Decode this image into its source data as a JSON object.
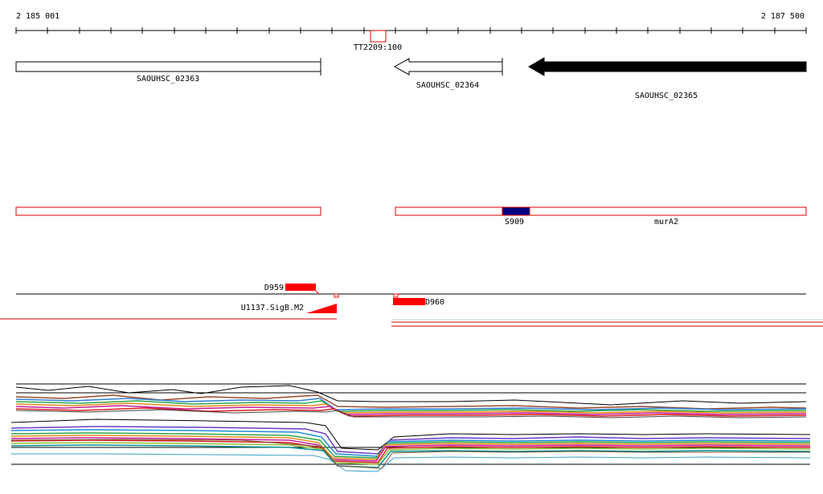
{
  "coordinates": {
    "start_label": "2 185 001",
    "end_label": "2 187 500"
  },
  "genes": [
    {
      "label": "SAOUHSC_02363",
      "strand": "forward",
      "style": "outline"
    },
    {
      "label": "SAOUHSC_02364",
      "strand": "reverse",
      "style": "outline"
    },
    {
      "label": "SAOUHSC_02365",
      "strand": "reverse",
      "style": "filled"
    }
  ],
  "terminator": {
    "label": "TT2209:100"
  },
  "features": [
    {
      "label": "S909",
      "type": "segment"
    },
    {
      "label": "murA2",
      "type": "transcript"
    }
  ],
  "promoters": [
    {
      "label": "D959"
    },
    {
      "label": "D960"
    }
  ],
  "sigma_site": {
    "label": "U1137.SigB.M2"
  },
  "colors": {
    "feature_outline": "#e00000",
    "feature_fill": "#ff0000",
    "highlight": "#000080",
    "gene_filled": "#000000",
    "axis": "#000000"
  }
}
